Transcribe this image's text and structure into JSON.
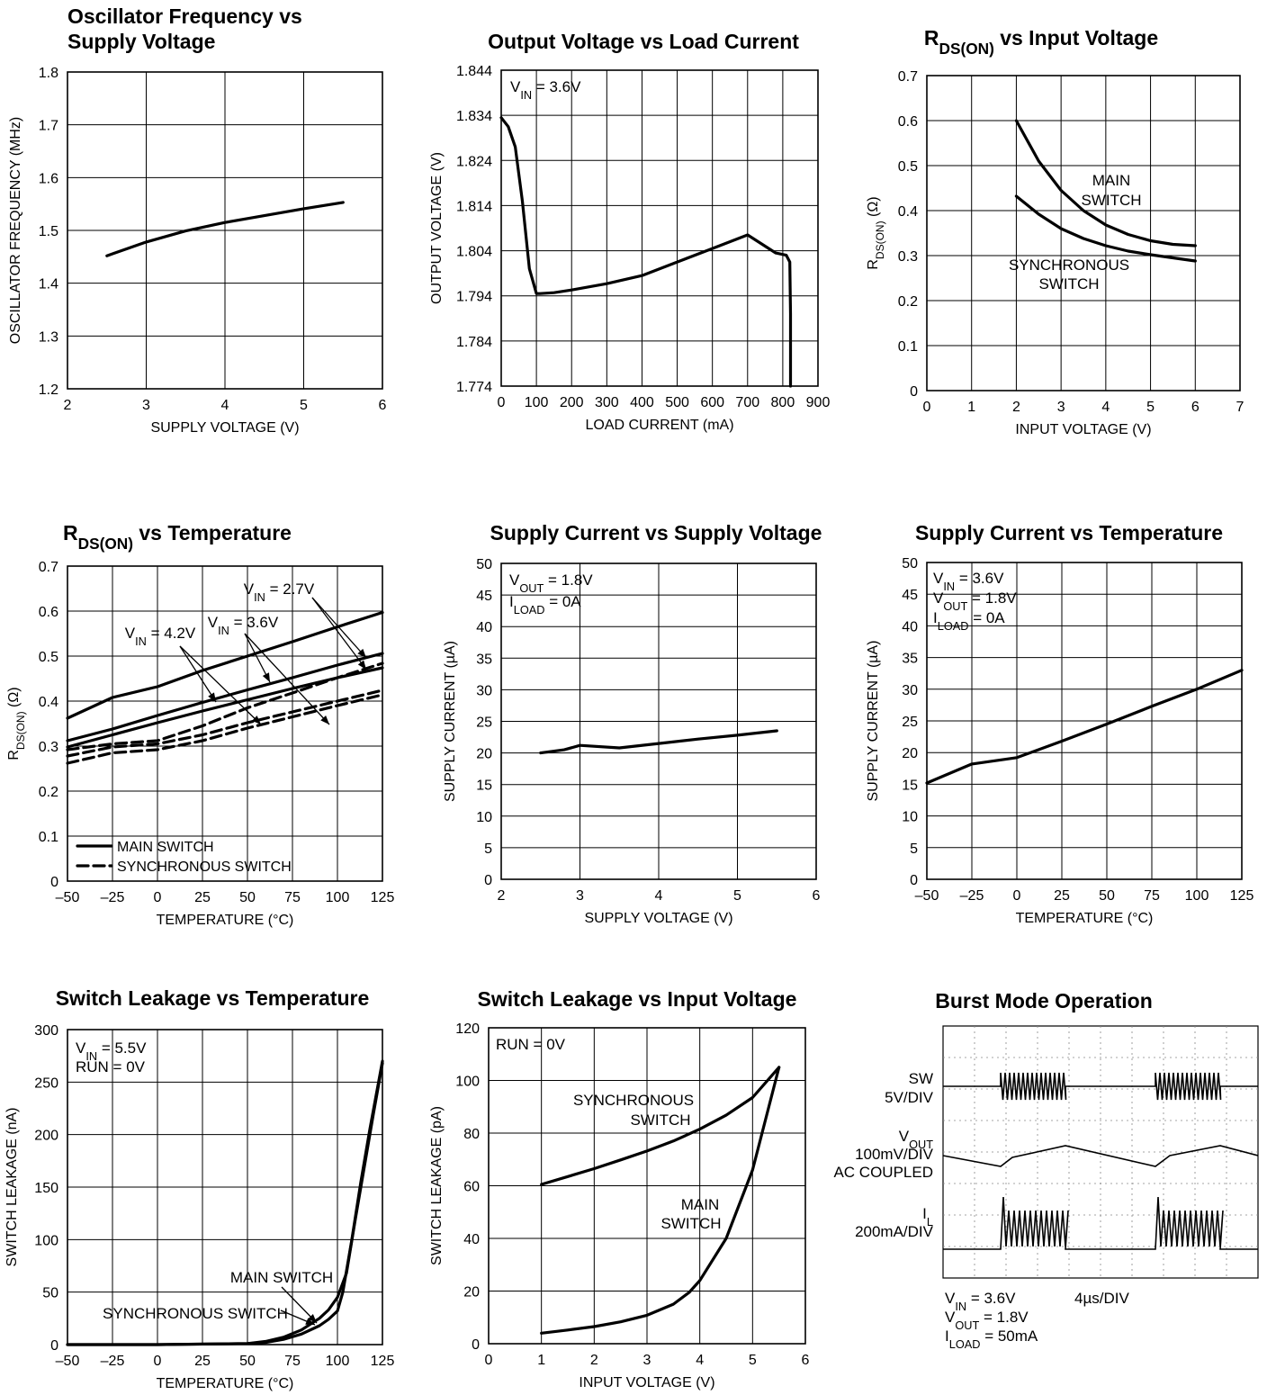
{
  "chart_data": [
    {
      "type": "line",
      "title_lines": [
        "Oscillator Frequency vs",
        "Supply Voltage"
      ],
      "xlabel": "SUPPLY VOLTAGE (V)",
      "ylabel": "OSCILLATOR FREQUENCY (MHz)",
      "xlim": [
        2,
        6
      ],
      "ylim": [
        1.2,
        1.8
      ],
      "xticks": [
        "2",
        "3",
        "4",
        "5",
        "6"
      ],
      "yticks": [
        "1.2",
        "1.3",
        "1.4",
        "1.5",
        "1.6",
        "1.7",
        "1.8"
      ],
      "grid": true,
      "series": [
        {
          "x": [
            2.5,
            3.0,
            3.5,
            4.0,
            4.5,
            5.0,
            5.5
          ],
          "y": [
            1.452,
            1.478,
            1.499,
            1.515,
            1.528,
            1.541,
            1.553
          ]
        }
      ]
    },
    {
      "type": "line",
      "title_lines": [
        "Output Voltage vs Load Current"
      ],
      "xlabel": "LOAD CURRENT (mA)",
      "ylabel": "OUTPUT VOLTAGE (V)",
      "xlim": [
        0,
        900
      ],
      "ylim": [
        1.774,
        1.844
      ],
      "xticks": [
        "0",
        "100",
        "200",
        "300",
        "400",
        "500",
        "600",
        "700",
        "800",
        "900"
      ],
      "yticks": [
        "1.774",
        "1.784",
        "1.794",
        "1.804",
        "1.814",
        "1.824",
        "1.834",
        "1.844"
      ],
      "grid": true,
      "annotations": [
        "V_IN = 3.6V"
      ],
      "series": [
        {
          "x": [
            0,
            20,
            40,
            60,
            80,
            100,
            110,
            150,
            200,
            300,
            400,
            500,
            600,
            700,
            780,
            810,
            820,
            822,
            822
          ],
          "y": [
            1.8335,
            1.8315,
            1.827,
            1.815,
            1.8,
            1.7945,
            1.7945,
            1.7947,
            1.7953,
            1.7967,
            1.7985,
            1.8015,
            1.8045,
            1.8075,
            1.8035,
            1.803,
            1.8015,
            1.79,
            1.774
          ]
        }
      ]
    },
    {
      "type": "line",
      "title_lines": [
        "R_DS(ON) vs Input  Voltage"
      ],
      "xlabel": "INPUT VOLTAGE (V)",
      "ylabel": "R_DS(ON) (Ω)",
      "xlim": [
        0,
        7
      ],
      "ylim": [
        0,
        0.7
      ],
      "xticks": [
        "0",
        "1",
        "2",
        "3",
        "4",
        "5",
        "6",
        "7"
      ],
      "yticks": [
        "0",
        "0.1",
        "0.2",
        "0.3",
        "0.4",
        "0.5",
        "0.6",
        "0.7"
      ],
      "grid": true,
      "annotations": [
        "MAIN",
        "SWITCH",
        "SYNCHRONOUS",
        "SWITCH"
      ],
      "series": [
        {
          "name": "MAIN SWITCH",
          "x": [
            2.0,
            2.5,
            3.0,
            3.5,
            4.0,
            4.5,
            5.0,
            5.5,
            6.0
          ],
          "y": [
            0.6,
            0.51,
            0.445,
            0.4,
            0.368,
            0.347,
            0.333,
            0.325,
            0.322
          ]
        },
        {
          "name": "SYNCHRONOUS SWITCH",
          "x": [
            2.0,
            2.5,
            3.0,
            3.5,
            4.0,
            4.5,
            5.0,
            5.5,
            6.0
          ],
          "y": [
            0.432,
            0.392,
            0.36,
            0.338,
            0.322,
            0.31,
            0.302,
            0.295,
            0.288
          ]
        }
      ]
    },
    {
      "type": "line",
      "title_lines": [
        "R_DS(ON) vs Temperature"
      ],
      "xlabel": "TEMPERATURE (°C)",
      "ylabel": "R_DS(ON) (Ω)",
      "xlim": [
        -50,
        125
      ],
      "ylim": [
        0,
        0.7
      ],
      "xticks": [
        "–50",
        "–25",
        "0",
        "25",
        "50",
        "75",
        "100",
        "125"
      ],
      "yticks": [
        "0",
        "0.1",
        "0.2",
        "0.3",
        "0.4",
        "0.5",
        "0.6",
        "0.7"
      ],
      "grid": true,
      "legend": [
        "MAIN SWITCH",
        "SYNCHRONOUS SWITCH"
      ],
      "legend_position": "bottom-left",
      "annotations": [
        "V_IN = 2.7V",
        "V_IN = 3.6V",
        "V_IN = 4.2V"
      ],
      "series": [
        {
          "name": "MAIN SWITCH",
          "x": [
            -50,
            -25,
            0,
            25,
            50,
            75,
            100,
            125
          ],
          "y": [
            0.362,
            0.408,
            0.432,
            0.468,
            0.5,
            0.532,
            0.565,
            0.597
          ]
        },
        {
          "name": "MAIN SWITCH",
          "x": [
            -50,
            -25,
            0,
            25,
            50,
            75,
            100,
            125
          ],
          "y": [
            0.312,
            0.338,
            0.368,
            0.397,
            0.425,
            0.452,
            0.48,
            0.506
          ]
        },
        {
          "name": "MAIN SWITCH",
          "x": [
            -50,
            -25,
            0,
            25,
            50,
            75,
            100,
            125
          ],
          "y": [
            0.298,
            0.325,
            0.352,
            0.378,
            0.403,
            0.428,
            0.452,
            0.474
          ]
        },
        {
          "name": "SYNCHRONOUS SWITCH",
          "x": [
            -50,
            -25,
            0,
            25,
            50,
            75,
            100,
            125
          ],
          "y": [
            0.292,
            0.305,
            0.312,
            0.345,
            0.385,
            0.418,
            0.452,
            0.484
          ]
        },
        {
          "name": "SYNCHRONOUS SWITCH",
          "x": [
            -50,
            -25,
            0,
            25,
            50,
            75,
            100,
            125
          ],
          "y": [
            0.278,
            0.298,
            0.305,
            0.325,
            0.352,
            0.376,
            0.4,
            0.424
          ]
        },
        {
          "name": "SYNCHRONOUS SWITCH",
          "x": [
            -50,
            -25,
            0,
            25,
            50,
            75,
            100,
            125
          ],
          "y": [
            0.262,
            0.285,
            0.292,
            0.312,
            0.34,
            0.365,
            0.39,
            0.414
          ]
        }
      ]
    },
    {
      "type": "line",
      "title_lines": [
        "Supply Current vs Supply Voltage"
      ],
      "xlabel": "SUPPLY VOLTAGE (V)",
      "ylabel": "SUPPLY CURRENT (µA)",
      "xlim": [
        2,
        6
      ],
      "ylim": [
        0,
        50
      ],
      "xticks": [
        "2",
        "3",
        "4",
        "5",
        "6"
      ],
      "yticks": [
        "0",
        "5",
        "10",
        "15",
        "20",
        "25",
        "30",
        "35",
        "40",
        "45",
        "50"
      ],
      "grid": true,
      "annotations": [
        "V_OUT = 1.8V",
        "I_LOAD = 0A"
      ],
      "series": [
        {
          "x": [
            2.5,
            2.8,
            3.0,
            3.5,
            4.0,
            4.5,
            5.0,
            5.5
          ],
          "y": [
            20.0,
            20.5,
            21.2,
            20.8,
            21.5,
            22.2,
            22.8,
            23.5
          ]
        }
      ]
    },
    {
      "type": "line",
      "title_lines": [
        "Supply Current vs Temperature"
      ],
      "xlabel": "TEMPERATURE (°C)",
      "ylabel": "SUPPLY CURRENT (µA)",
      "xlim": [
        -50,
        125
      ],
      "ylim": [
        0,
        50
      ],
      "xticks": [
        "–50",
        "–25",
        "0",
        "25",
        "50",
        "75",
        "100",
        "125"
      ],
      "yticks": [
        "0",
        "5",
        "10",
        "15",
        "20",
        "25",
        "30",
        "35",
        "40",
        "45",
        "50"
      ],
      "grid": true,
      "annotations": [
        "V_IN = 3.6V",
        "V_OUT = 1.8V",
        "I_LOAD = 0A"
      ],
      "series": [
        {
          "x": [
            -50,
            -25,
            0,
            25,
            50,
            75,
            100,
            125
          ],
          "y": [
            15.2,
            18.2,
            19.2,
            21.8,
            24.5,
            27.3,
            30.0,
            33.0
          ]
        }
      ]
    },
    {
      "type": "line",
      "title_lines": [
        "Switch Leakage vs Temperature"
      ],
      "xlabel": "TEMPERATURE (°C)",
      "ylabel": "SWITCH LEAKAGE (nA)",
      "xlim": [
        -50,
        125
      ],
      "ylim": [
        0,
        300
      ],
      "xticks": [
        "–50",
        "–25",
        "0",
        "25",
        "50",
        "75",
        "100",
        "125"
      ],
      "yticks": [
        "0",
        "50",
        "100",
        "150",
        "200",
        "250",
        "300"
      ],
      "grid": true,
      "annotations": [
        "V_IN = 5.5V",
        "RUN = 0V",
        "MAIN SWITCH",
        "SYNCHRONOUS SWITCH"
      ],
      "series": [
        {
          "name": "MAIN SWITCH",
          "x": [
            -50,
            0,
            50,
            60,
            70,
            80,
            90,
            95,
            100,
            105,
            110,
            115,
            120,
            125
          ],
          "y": [
            0,
            0,
            1,
            3,
            7,
            14,
            25,
            33,
            45,
            68,
            120,
            170,
            220,
            268
          ]
        },
        {
          "name": "SYNCHRONOUS SWITCH",
          "x": [
            -50,
            0,
            50,
            60,
            70,
            80,
            90,
            95,
            100,
            103,
            108,
            113,
            118,
            125
          ],
          "y": [
            0,
            0,
            1,
            2,
            5,
            10,
            18,
            24,
            32,
            50,
            100,
            155,
            205,
            270
          ]
        }
      ]
    },
    {
      "type": "line",
      "title_lines": [
        "Switch Leakage vs Input Voltage"
      ],
      "xlabel": "INPUT VOLTAGE (V)",
      "ylabel": "SWITCH LEAKAGE (pA)",
      "xlim": [
        0,
        6
      ],
      "ylim": [
        0,
        120
      ],
      "xticks": [
        "0",
        "1",
        "2",
        "3",
        "4",
        "5",
        "6"
      ],
      "yticks": [
        "0",
        "20",
        "40",
        "60",
        "80",
        "100",
        "120"
      ],
      "grid": true,
      "annotations": [
        "RUN = 0V",
        "SYNCHRONOUS",
        "SWITCH",
        "MAIN",
        "SWITCH"
      ],
      "series": [
        {
          "name": "SYNCHRONOUS SWITCH",
          "x": [
            1.0,
            1.5,
            2.0,
            2.5,
            3.0,
            3.5,
            4.0,
            4.5,
            5.0,
            5.5
          ],
          "y": [
            60.5,
            63.5,
            66.5,
            69.8,
            73.2,
            77.0,
            81.5,
            86.8,
            93.5,
            105
          ]
        },
        {
          "name": "MAIN SWITCH",
          "x": [
            1.0,
            1.5,
            2.0,
            2.5,
            3.0,
            3.5,
            3.8,
            4.0,
            4.5,
            5.0,
            5.5
          ],
          "y": [
            4.0,
            5.2,
            6.5,
            8.3,
            10.8,
            15.0,
            19.5,
            24.0,
            40.0,
            66.0,
            105
          ]
        }
      ]
    }
  ],
  "scope": {
    "title": "Burst Mode Operation",
    "channels": [
      {
        "name": "SW",
        "scale": "5V/DIV"
      },
      {
        "name": "V_OUT",
        "scale": "100mV/DIV",
        "extra": "AC COUPLED"
      },
      {
        "name": "I_L",
        "scale": "200mA/DIV"
      }
    ],
    "conditions": [
      "V_IN = 3.6V",
      "V_OUT = 1.8V",
      "I_LOAD = 50mA"
    ],
    "timebase": "4µs/DIV"
  }
}
